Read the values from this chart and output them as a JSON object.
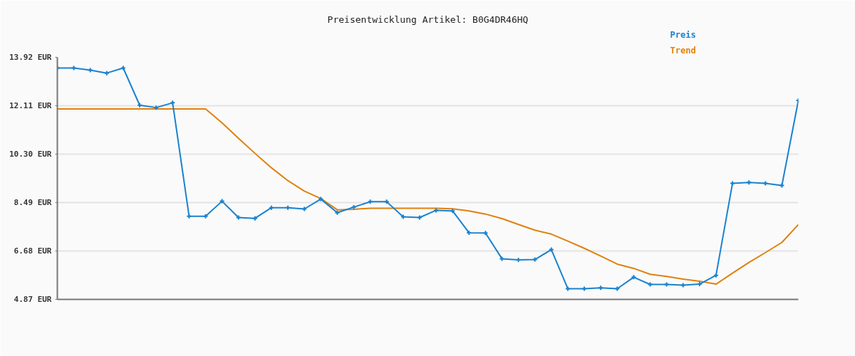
{
  "chart_data": {
    "type": "line",
    "title": "Preisentwicklung Artikel: B0G4DR46HQ",
    "categories": [
      null,
      null,
      null,
      null,
      null,
      null,
      null,
      null,
      null,
      null,
      null,
      null,
      null,
      null,
      null,
      null,
      null,
      null,
      null,
      null,
      null,
      null,
      null,
      null,
      null,
      null,
      null,
      null,
      null,
      null,
      null,
      null,
      null,
      null,
      null,
      null,
      null,
      null,
      null,
      null,
      null,
      null,
      null,
      null,
      null,
      null
    ],
    "series": [
      {
        "name": "Preis",
        "color": "#1a82cf",
        "marker": "cross",
        "values": [
          13.52,
          13.52,
          13.44,
          13.33,
          13.52,
          12.13,
          12.04,
          12.22,
          7.98,
          7.98,
          8.54,
          7.93,
          7.9,
          8.3,
          8.3,
          8.25,
          8.62,
          8.11,
          8.32,
          8.52,
          8.52,
          7.96,
          7.93,
          8.2,
          8.18,
          7.36,
          7.35,
          6.39,
          6.35,
          6.36,
          6.73,
          5.27,
          5.27,
          5.3,
          5.27,
          5.7,
          5.43,
          5.43,
          5.4,
          5.44,
          5.77,
          9.21,
          9.24,
          9.21,
          9.13,
          12.31
        ]
      },
      {
        "name": "Trend",
        "color": "#e0800e",
        "values": [
          11.99,
          11.99,
          11.99,
          11.99,
          11.99,
          11.99,
          11.99,
          11.99,
          11.99,
          11.99,
          11.47,
          10.89,
          10.33,
          9.79,
          9.31,
          8.92,
          8.64,
          8.22,
          8.24,
          8.28,
          8.28,
          8.28,
          8.28,
          8.28,
          8.26,
          8.18,
          8.06,
          7.89,
          7.67,
          7.46,
          7.31,
          7.05,
          6.78,
          6.49,
          6.19,
          6.03,
          5.81,
          5.73,
          5.63,
          5.55,
          5.44,
          5.85,
          6.25,
          6.62,
          7.0,
          7.67
        ]
      }
    ],
    "ylim": [
      4.87,
      13.92
    ],
    "yticks": [
      {
        "value": 4.87,
        "label": "4.87 EUR"
      },
      {
        "value": 6.68,
        "label": "6.68 EUR"
      },
      {
        "value": 8.49,
        "label": "8.49 EUR"
      },
      {
        "value": 10.3,
        "label": "10.30 EUR"
      },
      {
        "value": 12.11,
        "label": "12.11 EUR"
      },
      {
        "value": 13.92,
        "label": "13.92 EUR"
      }
    ],
    "grid": "y",
    "tick_labels": "y",
    "line_style": "solid"
  }
}
